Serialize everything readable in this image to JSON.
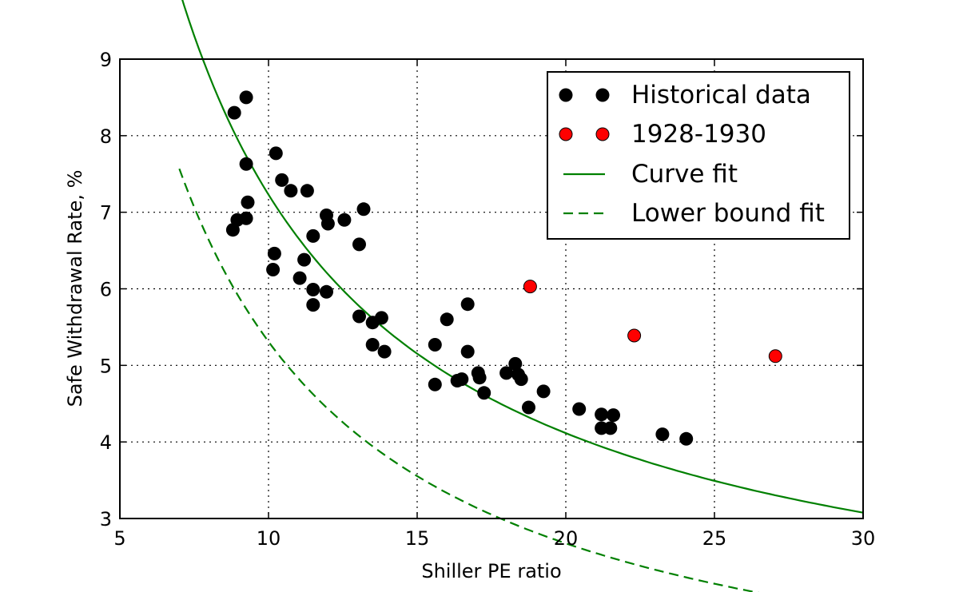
{
  "chart_data": {
    "type": "scatter",
    "xlabel": "Shiller PE ratio",
    "ylabel": "Safe Withdrawal Rate, %",
    "xlim": [
      5,
      30
    ],
    "ylim": [
      3,
      9
    ],
    "xticks": [
      5,
      10,
      15,
      20,
      25,
      30
    ],
    "yticks": [
      3,
      4,
      5,
      6,
      7,
      8,
      9
    ],
    "x_tick_labels": [
      "5",
      "10",
      "15",
      "20",
      "25",
      "30"
    ],
    "y_tick_labels": [
      "3",
      "4",
      "5",
      "6",
      "7",
      "8",
      "9"
    ],
    "grid": true,
    "legend_position": "top-right",
    "legend": [
      {
        "label": "Historical data",
        "kind": "markers",
        "color": "#000000"
      },
      {
        "label": "1928-1930",
        "kind": "markers",
        "color": "#ff0000"
      },
      {
        "label": "Curve fit",
        "kind": "solid-line",
        "color": "#008000"
      },
      {
        "label": "Lower bound fit",
        "kind": "dashed-line",
        "color": "#008000"
      }
    ],
    "series": [
      {
        "name": "Historical data",
        "color": "#000000",
        "points": [
          [
            8.85,
            8.3
          ],
          [
            9.25,
            8.5
          ],
          [
            9.25,
            7.63
          ],
          [
            9.3,
            7.13
          ],
          [
            8.95,
            6.9
          ],
          [
            9.25,
            6.92
          ],
          [
            8.8,
            6.77
          ],
          [
            10.25,
            7.77
          ],
          [
            10.45,
            7.42
          ],
          [
            10.75,
            7.28
          ],
          [
            11.3,
            7.28
          ],
          [
            10.2,
            6.46
          ],
          [
            10.15,
            6.25
          ],
          [
            11.2,
            6.38
          ],
          [
            11.05,
            6.14
          ],
          [
            11.5,
            6.69
          ],
          [
            11.95,
            6.96
          ],
          [
            12.0,
            6.85
          ],
          [
            12.55,
            6.9
          ],
          [
            13.2,
            7.04
          ],
          [
            13.05,
            6.58
          ],
          [
            11.5,
            5.99
          ],
          [
            11.95,
            5.96
          ],
          [
            11.5,
            5.79
          ],
          [
            13.05,
            5.64
          ],
          [
            13.5,
            5.56
          ],
          [
            13.8,
            5.62
          ],
          [
            13.5,
            5.27
          ],
          [
            13.9,
            5.18
          ],
          [
            15.6,
            5.27
          ],
          [
            16.0,
            5.6
          ],
          [
            16.7,
            5.8
          ],
          [
            16.7,
            5.18
          ],
          [
            15.6,
            4.75
          ],
          [
            16.35,
            4.8
          ],
          [
            16.5,
            4.82
          ],
          [
            17.05,
            4.9
          ],
          [
            17.1,
            4.84
          ],
          [
            17.25,
            4.64
          ],
          [
            18.0,
            4.9
          ],
          [
            18.3,
            5.02
          ],
          [
            18.4,
            4.88
          ],
          [
            18.5,
            4.82
          ],
          [
            18.75,
            4.45
          ],
          [
            19.25,
            4.66
          ],
          [
            20.45,
            4.43
          ],
          [
            21.2,
            4.36
          ],
          [
            21.2,
            4.18
          ],
          [
            21.5,
            4.18
          ],
          [
            21.6,
            4.35
          ],
          [
            23.25,
            4.1
          ],
          [
            24.05,
            4.04
          ]
        ]
      },
      {
        "name": "1928-1930",
        "color": "#ff0000",
        "points": [
          [
            18.8,
            6.03
          ],
          [
            22.3,
            5.39
          ],
          [
            27.05,
            5.12
          ]
        ]
      }
    ],
    "fits": [
      {
        "name": "Curve fit",
        "style": "solid",
        "color": "#008000",
        "a": 62.3,
        "b": -1.0,
        "x_range": [
          7,
          30
        ]
      },
      {
        "name": "Lower bound fit",
        "style": "dashed",
        "color": "#008000",
        "a": 52.7,
        "b": -0.04,
        "x_range": [
          7,
          30
        ]
      }
    ]
  }
}
